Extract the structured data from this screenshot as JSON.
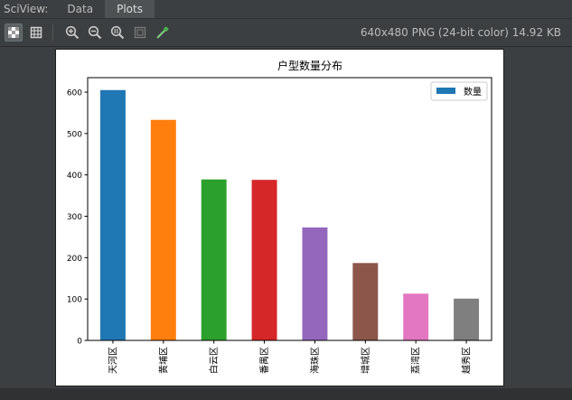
{
  "window": {
    "title": "SciView:",
    "tabs": [
      {
        "label": "Data",
        "active": false
      },
      {
        "label": "Plots",
        "active": true
      }
    ]
  },
  "toolbar": {
    "buttons": [
      {
        "name": "background-toggle-icon",
        "pressed": true
      },
      {
        "name": "grid-toggle-icon",
        "pressed": false
      },
      {
        "name": "zoom-in-icon",
        "pressed": false
      },
      {
        "name": "zoom-out-icon",
        "pressed": false
      },
      {
        "name": "actual-size-icon",
        "pressed": false
      },
      {
        "name": "fit-to-window-icon",
        "pressed": false
      },
      {
        "name": "color-picker-icon",
        "pressed": false
      }
    ],
    "image_info": "640x480 PNG (24-bit color) 14.92 KB"
  },
  "chart_data": {
    "type": "bar",
    "title": "户型数量分布",
    "categories": [
      "天河区",
      "黄埔区",
      "白云区",
      "番禺区",
      "海珠区",
      "增城区",
      "荔湾区",
      "越秀区"
    ],
    "series": [
      {
        "name": "数量",
        "values": [
          605,
          533,
          389,
          388,
          273,
          187,
          113,
          101
        ],
        "colors": [
          "#1f77b4",
          "#ff7f0e",
          "#2ca02c",
          "#d62728",
          "#9467bd",
          "#8c564b",
          "#e377c2",
          "#7f7f7f"
        ]
      }
    ],
    "ylim": [
      0,
      635
    ],
    "yticks": [
      0,
      100,
      200,
      300,
      400,
      500,
      600
    ],
    "legend": "top-right",
    "grid": false,
    "xlabel": "",
    "ylabel": ""
  }
}
